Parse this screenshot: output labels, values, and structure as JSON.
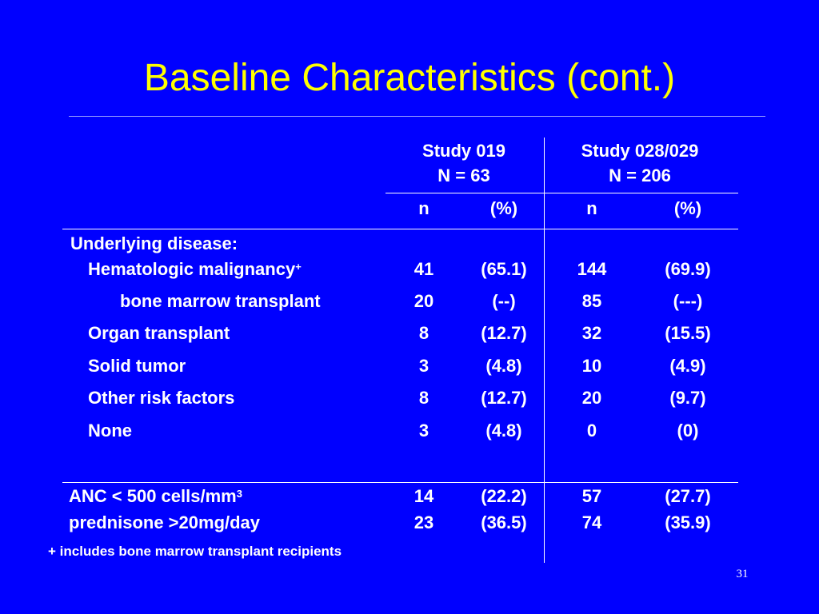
{
  "title": "Baseline Characteristics (cont.)",
  "columns": {
    "study1": {
      "name": "Study 019",
      "n_label": "N = 63"
    },
    "study2": {
      "name": "Study 028/029",
      "n_label": "N = 206"
    },
    "sub": {
      "n": "n",
      "pct": "(%)"
    }
  },
  "section_label": "Underlying disease:",
  "rows": [
    {
      "label": "Hematologic malignancy",
      "sup": "+",
      "s1_n": "41",
      "s1_pct": "(65.1)",
      "s2_n": "144",
      "s2_pct": "(69.9)"
    },
    {
      "label": "bone marrow transplant",
      "s1_n": "20",
      "s1_pct": "(--)",
      "s2_n": "85",
      "s2_pct": "(---)"
    },
    {
      "label": "Organ transplant",
      "s1_n": "8",
      "s1_pct": "(12.7)",
      "s2_n": "32",
      "s2_pct": "(15.5)"
    },
    {
      "label": "Solid tumor",
      "s1_n": "3",
      "s1_pct": "(4.8)",
      "s2_n": "10",
      "s2_pct": "(4.9)"
    },
    {
      "label": "Other risk factors",
      "s1_n": "8",
      "s1_pct": "(12.7)",
      "s2_n": "20",
      "s2_pct": "(9.7)"
    },
    {
      "label": "None",
      "s1_n": "3",
      "s1_pct": "(4.8)",
      "s2_n": "0",
      "s2_pct": "(0)"
    }
  ],
  "extra_rows": [
    {
      "label": "ANC < 500 cells/mm",
      "sup": "3",
      "s1_n": "14",
      "s1_pct": "(22.2)",
      "s2_n": "57",
      "s2_pct": "(27.7)"
    },
    {
      "label": "prednisone >20mg/day",
      "s1_n": "23",
      "s1_pct": "(36.5)",
      "s2_n": "74",
      "s2_pct": "(35.9)"
    }
  ],
  "footnote": {
    "marker": "+",
    "text": "includes bone marrow transplant recipients"
  },
  "page_number": "31",
  "colors": {
    "background": "#0000ff",
    "title": "#ffff00",
    "text": "#ffffff"
  }
}
